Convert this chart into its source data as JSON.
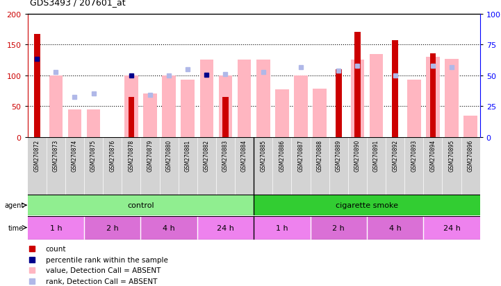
{
  "title": "GDS3493 / 207601_at",
  "samples": [
    "GSM270872",
    "GSM270873",
    "GSM270874",
    "GSM270875",
    "GSM270876",
    "GSM270878",
    "GSM270879",
    "GSM270880",
    "GSM270881",
    "GSM270882",
    "GSM270883",
    "GSM270884",
    "GSM270885",
    "GSM270886",
    "GSM270887",
    "GSM270888",
    "GSM270889",
    "GSM270890",
    "GSM270891",
    "GSM270892",
    "GSM270893",
    "GSM270894",
    "GSM270895",
    "GSM270896"
  ],
  "count_values": [
    167,
    0,
    0,
    0,
    0,
    65,
    0,
    0,
    0,
    0,
    65,
    0,
    0,
    0,
    0,
    0,
    110,
    170,
    0,
    157,
    0,
    136,
    0,
    0
  ],
  "value_absent": [
    0,
    100,
    45,
    45,
    0,
    100,
    70,
    100,
    93,
    125,
    100,
    125,
    125,
    77,
    100,
    78,
    0,
    125,
    135,
    0,
    93,
    130,
    127,
    35
  ],
  "rank_absent": [
    0,
    105,
    65,
    70,
    0,
    0,
    68,
    100,
    110,
    0,
    102,
    0,
    105,
    0,
    113,
    0,
    108,
    115,
    0,
    100,
    0,
    115,
    113,
    0
  ],
  "percentile_present": [
    127,
    0,
    0,
    0,
    0,
    100,
    0,
    0,
    0,
    101,
    0,
    0,
    0,
    0,
    0,
    0,
    0,
    0,
    0,
    0,
    0,
    0,
    0,
    0
  ],
  "agent_groups": [
    {
      "label": "control",
      "start": 0,
      "end": 12,
      "color": "#90ee90"
    },
    {
      "label": "cigarette smoke",
      "start": 12,
      "end": 24,
      "color": "#32cd32"
    }
  ],
  "time_groups": [
    {
      "label": "1 h",
      "start": 0,
      "end": 3,
      "color": "#ee82ee"
    },
    {
      "label": "2 h",
      "start": 3,
      "end": 6,
      "color": "#da70d6"
    },
    {
      "label": "4 h",
      "start": 6,
      "end": 9,
      "color": "#da70d6"
    },
    {
      "label": "24 h",
      "start": 9,
      "end": 12,
      "color": "#ee82ee"
    },
    {
      "label": "1 h",
      "start": 12,
      "end": 15,
      "color": "#ee82ee"
    },
    {
      "label": "2 h",
      "start": 15,
      "end": 18,
      "color": "#da70d6"
    },
    {
      "label": "4 h",
      "start": 18,
      "end": 21,
      "color": "#da70d6"
    },
    {
      "label": "24 h",
      "start": 21,
      "end": 24,
      "color": "#ee82ee"
    }
  ],
  "ylim_left": [
    0,
    200
  ],
  "ylim_right": [
    0,
    100
  ],
  "yticks_left": [
    0,
    50,
    100,
    150,
    200
  ],
  "yticks_right": [
    0,
    25,
    50,
    75,
    100
  ],
  "count_color": "#cc0000",
  "value_absent_color": "#ffb6c1",
  "rank_absent_color": "#b0b8e8",
  "percentile_color": "#00008b",
  "bg_color": "#ffffff",
  "sample_bg_color": "#d3d3d3"
}
